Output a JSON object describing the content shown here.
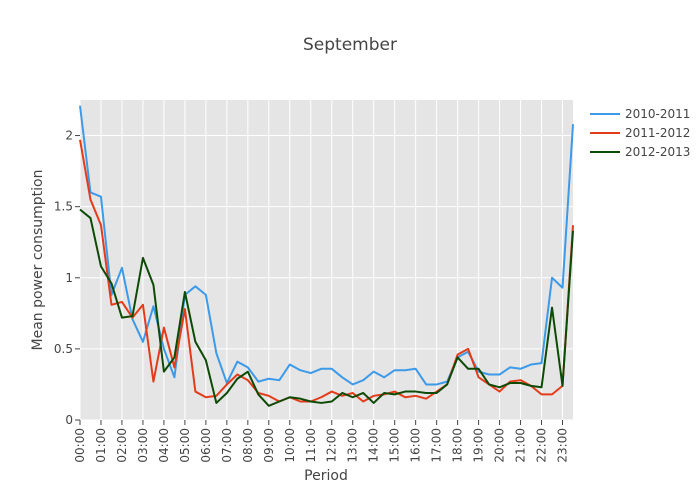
{
  "chart_data": {
    "type": "line",
    "title": "September",
    "xlabel": "Period",
    "ylabel": "Mean power consumption",
    "ylim": [
      0,
      2.25
    ],
    "grid": true,
    "legend_position": "top-right",
    "background": "#e5e5e5",
    "x_ticks": [
      "00:00",
      "01:00",
      "02:00",
      "03:00",
      "04:00",
      "05:00",
      "06:00",
      "07:00",
      "08:00",
      "09:00",
      "10:00",
      "11:00",
      "12:00",
      "13:00",
      "14:00",
      "15:00",
      "16:00",
      "17:00",
      "18:00",
      "19:00",
      "20:00",
      "21:00",
      "22:00",
      "23:00"
    ],
    "y_ticks": [
      {
        "value": 0,
        "label": "0"
      },
      {
        "value": 0.5,
        "label": "0.5"
      },
      {
        "value": 1,
        "label": "1"
      },
      {
        "value": 1.5,
        "label": "1.5"
      },
      {
        "value": 2,
        "label": "2"
      }
    ],
    "series": [
      {
        "name": "2010-2011",
        "color": "#3d9ae8",
        "values": [
          2.21,
          1.6,
          1.57,
          0.88,
          1.07,
          0.71,
          0.55,
          0.8,
          0.5,
          0.3,
          0.88,
          0.94,
          0.88,
          0.47,
          0.26,
          0.41,
          0.37,
          0.27,
          0.29,
          0.28,
          0.39,
          0.35,
          0.33,
          0.36,
          0.36,
          0.3,
          0.25,
          0.28,
          0.34,
          0.3,
          0.35,
          0.35,
          0.36,
          0.25,
          0.25,
          0.27,
          0.44,
          0.48,
          0.34,
          0.32,
          0.32,
          0.37,
          0.36,
          0.39,
          0.4,
          1.0,
          0.93,
          2.08
        ]
      },
      {
        "name": "2011-2012",
        "color": "#e33c1b",
        "values": [
          1.97,
          1.55,
          1.37,
          0.81,
          0.83,
          0.72,
          0.81,
          0.27,
          0.65,
          0.37,
          0.78,
          0.2,
          0.16,
          0.17,
          0.25,
          0.32,
          0.28,
          0.19,
          0.17,
          0.13,
          0.16,
          0.13,
          0.13,
          0.16,
          0.2,
          0.17,
          0.19,
          0.13,
          0.17,
          0.18,
          0.2,
          0.16,
          0.17,
          0.15,
          0.2,
          0.25,
          0.46,
          0.5,
          0.3,
          0.25,
          0.2,
          0.27,
          0.28,
          0.24,
          0.18,
          0.18,
          0.24,
          1.37
        ]
      },
      {
        "name": "2012-2013",
        "color": "#0d4a05",
        "values": [
          1.48,
          1.42,
          1.08,
          0.96,
          0.72,
          0.73,
          1.14,
          0.95,
          0.34,
          0.44,
          0.9,
          0.55,
          0.42,
          0.12,
          0.19,
          0.29,
          0.34,
          0.18,
          0.1,
          0.13,
          0.16,
          0.15,
          0.13,
          0.12,
          0.13,
          0.19,
          0.16,
          0.19,
          0.12,
          0.19,
          0.18,
          0.2,
          0.2,
          0.19,
          0.19,
          0.25,
          0.44,
          0.36,
          0.36,
          0.25,
          0.23,
          0.26,
          0.26,
          0.24,
          0.23,
          0.79,
          0.24,
          1.33
        ]
      }
    ]
  }
}
